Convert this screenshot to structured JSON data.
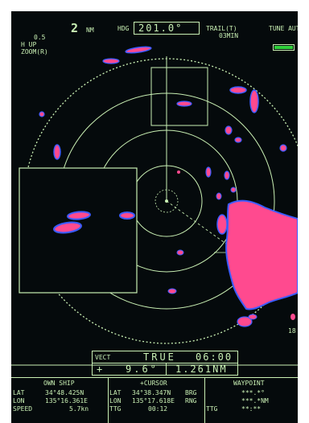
{
  "header": {
    "range_value": "2",
    "range_unit": "NM",
    "ring_interval": "0.5",
    "orientation": "H UP",
    "zoom": "ZOOM(R)",
    "hdg_label": "HDG",
    "hdg_value": "201.0°",
    "trail_label": "TRAIL(T)",
    "trail_time": "03MIN",
    "tune_label": "TUNE AUTO",
    "tune_level": 1.0
  },
  "side_number": "18",
  "vector": {
    "label": "VECT",
    "mode": "TRUE",
    "time": "06:00",
    "cursor_symbol": "+",
    "bearing": "9.6°",
    "range": "1.261NM"
  },
  "footer": {
    "own_ship_header": "OWN SHIP",
    "cursor_header": "+CURSOR",
    "waypoint_header": "WAYPOINT",
    "own_ship": [
      {
        "label": "LAT",
        "value": "34°48.425N"
      },
      {
        "label": "LON",
        "value": "135°16.361E"
      },
      {
        "label": "SPEED",
        "value": "5.7kn"
      }
    ],
    "cursor": [
      {
        "label": "LAT",
        "value": "34°38.347N"
      },
      {
        "label": "LON",
        "value": "135°17.618E"
      },
      {
        "label": "TTG",
        "value": "00:12"
      }
    ],
    "waypoint": [
      {
        "label": "BRG",
        "value": "***.*°"
      },
      {
        "label": "RNG",
        "value": "***.*NM"
      },
      {
        "label": "TTG",
        "value": "**:**"
      }
    ]
  },
  "colors": {
    "text": "#c9f0b4",
    "background": "#050a0c",
    "echo": "#ff4a8f",
    "echo_edge": "#3c5cff",
    "tune_fill": "#2fd13a"
  }
}
